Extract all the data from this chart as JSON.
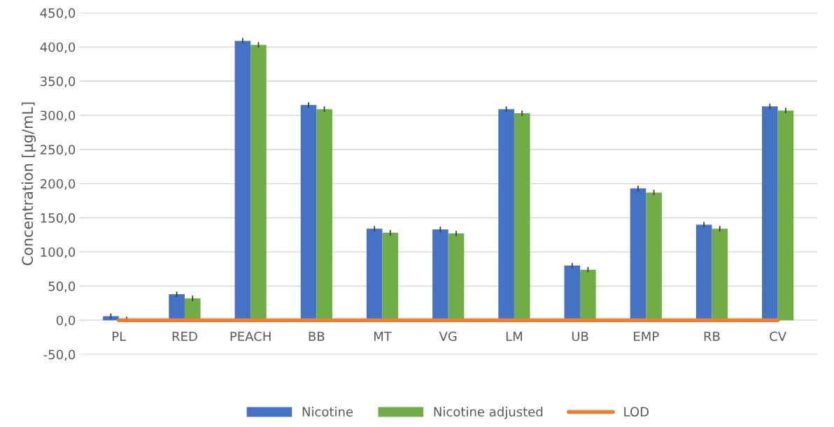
{
  "chart_data": {
    "type": "bar",
    "ylabel": "Concentration [µg/mL]",
    "categories": [
      "PL",
      "RED",
      "PEACH",
      "BB",
      "MT",
      "VG",
      "LM",
      "UB",
      "EMP",
      "RB",
      "CV"
    ],
    "series": [
      {
        "name": "Nicotine",
        "color": "#4472c4",
        "values": [
          6,
          38,
          409,
          315,
          134,
          133,
          309,
          80,
          193,
          140,
          313
        ],
        "errors": [
          4,
          4,
          4,
          4,
          4,
          4,
          4,
          4,
          4,
          4,
          4
        ]
      },
      {
        "name": "Nicotine adjusted",
        "color": "#70ad47",
        "values": [
          1,
          32,
          403,
          309,
          128,
          127,
          303,
          74,
          187,
          134,
          307
        ],
        "errors": [
          4,
          4,
          4,
          4,
          4,
          4,
          4,
          4,
          4,
          4,
          4
        ]
      },
      {
        "name": "LOD",
        "type": "line",
        "color": "#ed7d31",
        "values": [
          0,
          0,
          0,
          0,
          0,
          0,
          0,
          0,
          0,
          0,
          0
        ],
        "marker": "none",
        "line_style": "solid"
      }
    ],
    "ylim": [
      -50,
      450
    ],
    "yticks": [
      {
        "value": -50,
        "label": "-50,0"
      },
      {
        "value": 0,
        "label": "0,0"
      },
      {
        "value": 50,
        "label": "50,0"
      },
      {
        "value": 100,
        "label": "100,0"
      },
      {
        "value": 150,
        "label": "150,0"
      },
      {
        "value": 200,
        "label": "200,0"
      },
      {
        "value": 250,
        "label": "250,0"
      },
      {
        "value": 300,
        "label": "300,0"
      },
      {
        "value": 350,
        "label": "350,0"
      },
      {
        "value": 400,
        "label": "400,0"
      },
      {
        "value": 450,
        "label": "450,0"
      }
    ],
    "grid": "y",
    "legend": "bottom"
  }
}
